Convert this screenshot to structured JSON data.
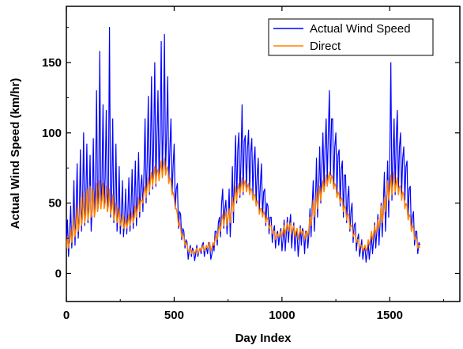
{
  "chart_data": {
    "type": "line",
    "title": "",
    "xlabel": "Day Index",
    "ylabel": "Actual Wind Speed (km/hr)",
    "xlim": [
      0,
      1825
    ],
    "ylim": [
      -20,
      190
    ],
    "xticks": [
      0,
      500,
      1000,
      1500
    ],
    "yticks": [
      0,
      50,
      100,
      150
    ],
    "grid": false,
    "legend_position": "top-right",
    "sample_step_days": 5,
    "series": [
      {
        "name": "Actual Wind Speed",
        "color": "#0000ff",
        "values": [
          22,
          38,
          12,
          28,
          48,
          18,
          32,
          66,
          20,
          42,
          78,
          25,
          40,
          88,
          30,
          48,
          100,
          34,
          52,
          92,
          36,
          50,
          84,
          30,
          48,
          96,
          40,
          62,
          130,
          44,
          60,
          158,
          46,
          64,
          120,
          48,
          68,
          116,
          44,
          58,
          175,
          40,
          54,
          110,
          36,
          50,
          92,
          30,
          44,
          76,
          28,
          40,
          66,
          26,
          38,
          60,
          28,
          42,
          68,
          30,
          46,
          74,
          32,
          50,
          80,
          34,
          56,
          86,
          40,
          62,
          70,
          44,
          72,
          110,
          50,
          80,
          126,
          56,
          86,
          140,
          60,
          92,
          150,
          62,
          96,
          130,
          66,
          98,
          165,
          70,
          104,
          170,
          72,
          100,
          140,
          64,
          88,
          110,
          56,
          76,
          92,
          46,
          60,
          64,
          32,
          44,
          42,
          24,
          32,
          30,
          18,
          24,
          22,
          10,
          16,
          20,
          12,
          18,
          16,
          9,
          14,
          20,
          12,
          16,
          18,
          14,
          20,
          22,
          12,
          18,
          18,
          14,
          22,
          20,
          10,
          14,
          22,
          16,
          30,
          30,
          20,
          36,
          40,
          26,
          50,
          60,
          32,
          46,
          52,
          28,
          40,
          60,
          26,
          46,
          76,
          36,
          70,
          98,
          50,
          88,
          100,
          54,
          80,
          120,
          56,
          94,
          98,
          60,
          88,
          102,
          58,
          86,
          96,
          56,
          80,
          90,
          48,
          70,
          82,
          44,
          64,
          78,
          40,
          58,
          60,
          34,
          50,
          48,
          28,
          40,
          40,
          22,
          30,
          34,
          18,
          28,
          30,
          20,
          28,
          32,
          16,
          24,
          38,
          16,
          28,
          40,
          22,
          34,
          42,
          18,
          30,
          36,
          16,
          26,
          32,
          12,
          22,
          34,
          20,
          32,
          30,
          14,
          30,
          30,
          18,
          28,
          46,
          26,
          48,
          66,
          30,
          48,
          82,
          40,
          60,
          90,
          50,
          76,
          100,
          60,
          90,
          110,
          66,
          100,
          130,
          70,
          110,
          110,
          60,
          90,
          100,
          56,
          84,
          88,
          48,
          74,
          80,
          40,
          70,
          70,
          36,
          54,
          62,
          30,
          44,
          50,
          22,
          34,
          36,
          16,
          24,
          28,
          12,
          18,
          24,
          10,
          16,
          20,
          8,
          14,
          22,
          10,
          18,
          28,
          14,
          24,
          36,
          18,
          30,
          42,
          20,
          36,
          50,
          26,
          48,
          72,
          30,
          50,
          80,
          40,
          80,
          150,
          52,
          82,
          110,
          56,
          96,
          116,
          58,
          90,
          100,
          56,
          82,
          90,
          52,
          76,
          80,
          40,
          60,
          62,
          30,
          40,
          44,
          20,
          30,
          30,
          14,
          22,
          20
        ]
      },
      {
        "name": "Direct",
        "color": "#ff8000",
        "values": [
          18,
          26,
          18,
          22,
          32,
          22,
          28,
          40,
          26,
          32,
          48,
          30,
          36,
          54,
          34,
          40,
          58,
          36,
          42,
          60,
          38,
          44,
          62,
          40,
          44,
          60,
          40,
          46,
          64,
          44,
          50,
          66,
          46,
          52,
          64,
          46,
          50,
          62,
          44,
          48,
          60,
          42,
          46,
          56,
          38,
          42,
          50,
          36,
          40,
          46,
          34,
          36,
          42,
          32,
          34,
          40,
          32,
          36,
          42,
          34,
          38,
          44,
          36,
          40,
          48,
          40,
          46,
          54,
          44,
          52,
          52,
          50,
          58,
          62,
          54,
          62,
          68,
          58,
          66,
          72,
          62,
          70,
          76,
          64,
          72,
          74,
          66,
          74,
          80,
          68,
          76,
          82,
          70,
          74,
          76,
          64,
          68,
          66,
          56,
          58,
          54,
          46,
          46,
          42,
          34,
          36,
          32,
          26,
          28,
          26,
          20,
          22,
          20,
          16,
          16,
          18,
          14,
          16,
          16,
          14,
          16,
          18,
          14,
          16,
          18,
          16,
          18,
          20,
          16,
          18,
          20,
          18,
          20,
          22,
          16,
          18,
          22,
          20,
          24,
          28,
          24,
          30,
          34,
          30,
          38,
          42,
          34,
          40,
          44,
          34,
          40,
          46,
          36,
          44,
          54,
          44,
          54,
          62,
          52,
          60,
          64,
          56,
          62,
          68,
          58,
          64,
          66,
          58,
          62,
          64,
          56,
          60,
          60,
          52,
          56,
          56,
          48,
          52,
          50,
          42,
          46,
          46,
          40,
          44,
          42,
          36,
          40,
          38,
          32,
          34,
          34,
          28,
          30,
          30,
          24,
          28,
          28,
          26,
          28,
          30,
          26,
          30,
          34,
          28,
          32,
          36,
          30,
          34,
          36,
          28,
          32,
          34,
          26,
          30,
          32,
          24,
          28,
          32,
          28,
          30,
          30,
          24,
          28,
          30,
          26,
          32,
          40,
          34,
          42,
          52,
          40,
          46,
          58,
          46,
          54,
          62,
          52,
          60,
          66,
          58,
          64,
          70,
          62,
          68,
          72,
          64,
          70,
          68,
          60,
          64,
          62,
          54,
          58,
          56,
          50,
          54,
          52,
          44,
          48,
          46,
          38,
          42,
          42,
          32,
          34,
          34,
          26,
          28,
          28,
          22,
          24,
          24,
          18,
          20,
          20,
          16,
          18,
          20,
          16,
          18,
          24,
          20,
          24,
          30,
          24,
          28,
          34,
          28,
          32,
          38,
          32,
          38,
          48,
          36,
          42,
          54,
          44,
          56,
          66,
          52,
          60,
          70,
          56,
          64,
          72,
          58,
          64,
          68,
          56,
          62,
          62,
          52,
          58,
          56,
          46,
          50,
          48,
          38,
          42,
          40,
          30,
          34,
          32,
          24,
          26,
          24,
          18,
          20,
          18
        ]
      }
    ]
  }
}
